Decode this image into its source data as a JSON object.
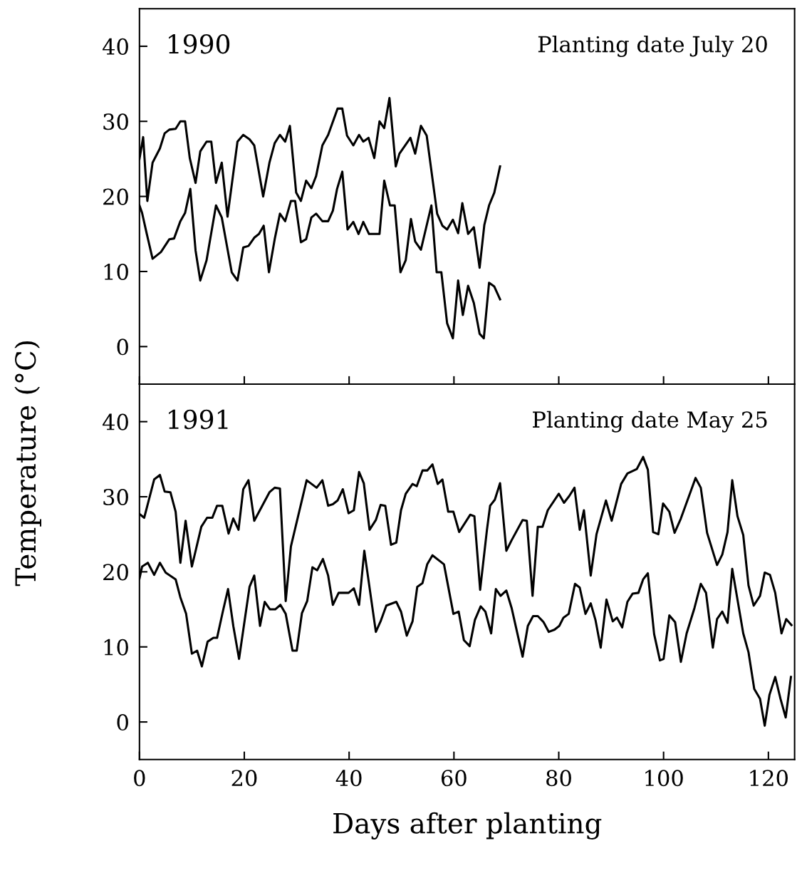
{
  "chart_data": [
    {
      "type": "line",
      "ylabel": "Temperature (°C)",
      "annotations": [
        "1990",
        "Planting date July 20"
      ],
      "xlim": [
        0,
        125
      ],
      "xticks": [
        0,
        20,
        40,
        60,
        80,
        100,
        120
      ],
      "ylim": [
        -5,
        45
      ],
      "yticks": [
        0,
        10,
        20,
        30,
        40
      ],
      "tick_labels": "y",
      "grid": false,
      "legend": false,
      "marker": "none",
      "line_style": "solid",
      "series": [
        {
          "color": "#000000",
          "x": [
            0,
            0.7,
            1.5,
            2.5,
            3.9,
            4.8,
            5.7,
            6.9,
            7.8,
            8.7,
            9.6,
            10.7,
            11.6,
            12.8,
            13.7,
            14.6,
            15.7,
            16.8,
            18.7,
            19.8,
            21.0,
            21.9,
            23.6,
            24.8,
            25.8,
            26.8,
            27.8,
            28.7,
            29.9,
            30.8,
            31.8,
            32.8,
            33.7,
            34.9,
            36.0,
            37.8,
            38.7,
            39.6,
            40.8,
            41.9,
            42.7,
            43.7,
            44.8,
            45.8,
            46.7,
            47.7,
            48.9,
            49.6,
            51.7,
            52.6,
            53.7,
            54.8,
            56.8,
            57.8,
            58.7,
            59.8,
            60.8,
            61.6,
            62.7,
            63.8,
            64.9,
            65.8,
            66.7,
            67.7,
            68.8
          ],
          "values": [
            25,
            27.9,
            19.4,
            24.5,
            26.4,
            28.4,
            28.9,
            29.0,
            30.0,
            30.0,
            25.1,
            21.8,
            26.0,
            27.3,
            27.3,
            21.8,
            24.5,
            17.3,
            27.3,
            28.2,
            27.6,
            26.8,
            20.0,
            24.5,
            27.1,
            28.2,
            27.3,
            29.4,
            20.5,
            19.4,
            22.1,
            21.1,
            22.7,
            26.8,
            28.2,
            31.7,
            31.7,
            28.1,
            26.8,
            28.2,
            27.3,
            27.8,
            25.1,
            30.0,
            29.1,
            33.1,
            24.0,
            25.7,
            27.8,
            25.7,
            29.4,
            28.1,
            17.7,
            16.1,
            15.6,
            16.9,
            15.1,
            19.1,
            15.0,
            15.9,
            10.5,
            16.2,
            18.8,
            20.5,
            24.0
          ]
        },
        {
          "color": "#000000",
          "x": [
            0,
            0.5,
            1.4,
            2.5,
            4.1,
            5.7,
            6.6,
            7.8,
            8.7,
            9.7,
            10.7,
            11.6,
            12.8,
            14.6,
            15.7,
            17.6,
            18.7,
            19.8,
            20.8,
            21.9,
            22.8,
            23.7,
            24.7,
            25.8,
            26.8,
            27.8,
            28.9,
            29.7,
            30.8,
            31.8,
            32.8,
            33.7,
            34.9,
            36.0,
            36.9,
            37.7,
            38.7,
            39.7,
            40.8,
            41.8,
            42.7,
            43.8,
            45.8,
            46.7,
            47.8,
            48.7,
            49.8,
            50.8,
            51.8,
            52.6,
            53.7,
            55.7,
            56.7,
            57.6,
            58.7,
            59.8,
            60.8,
            61.7,
            62.7,
            63.8,
            64.9,
            65.7,
            66.7,
            67.7,
            68.8
          ],
          "values": [
            18.8,
            17.8,
            15.0,
            11.7,
            12.6,
            14.3,
            14.4,
            16.7,
            17.8,
            21.0,
            12.8,
            8.8,
            11.5,
            18.8,
            17.2,
            9.9,
            8.8,
            13.2,
            13.4,
            14.5,
            15.0,
            16.1,
            9.9,
            14.3,
            17.7,
            16.7,
            19.4,
            19.4,
            13.9,
            14.3,
            17.2,
            17.7,
            16.7,
            16.7,
            18.1,
            21.0,
            23.3,
            15.6,
            16.6,
            15.0,
            16.6,
            15.0,
            15.0,
            22.1,
            18.8,
            18.8,
            9.9,
            11.5,
            17.0,
            14.0,
            12.9,
            18.8,
            9.9,
            9.9,
            3.1,
            1.1,
            8.8,
            4.2,
            8.1,
            5.8,
            1.7,
            1.1,
            8.5,
            8.0,
            6.3
          ]
        }
      ]
    },
    {
      "type": "line",
      "xlabel": "Days after planting",
      "annotations": [
        "1991",
        "Planting date May 25"
      ],
      "xlim": [
        0,
        125
      ],
      "xticks": [
        0,
        20,
        40,
        60,
        80,
        100,
        120
      ],
      "ylim": [
        -5,
        45
      ],
      "yticks": [
        0,
        10,
        20,
        30,
        40
      ],
      "grid": false,
      "legend": false,
      "marker": "none",
      "line_style": "solid",
      "series": [
        {
          "color": "#000000",
          "x": [
            0,
            0.9,
            2.8,
            3.9,
            4.8,
            5.9,
            6.9,
            7.8,
            8.8,
            10.0,
            11.8,
            12.9,
            13.9,
            14.8,
            15.8,
            17.0,
            17.9,
            18.9,
            19.8,
            20.8,
            21.9,
            24.8,
            25.8,
            26.8,
            27.9,
            28.9,
            31.9,
            33.8,
            34.9,
            36.0,
            36.9,
            37.8,
            38.8,
            39.9,
            40.9,
            41.9,
            42.8,
            43.9,
            45.1,
            46.0,
            46.9,
            48.0,
            49.0,
            49.9,
            50.8,
            52.1,
            52.9,
            54.0,
            54.9,
            55.9,
            56.9,
            57.8,
            58.9,
            59.9,
            61.0,
            63.1,
            63.9,
            65.0,
            66.3,
            66.9,
            67.8,
            68.8,
            70.0,
            71.0,
            73.1,
            73.9,
            75.0,
            76.0,
            76.9,
            77.9,
            80.0,
            81.0,
            82.0,
            83.0,
            84.0,
            84.8,
            86.1,
            87.2,
            89.0,
            90.1,
            91.9,
            93.1,
            94.9,
            96.1,
            97.0,
            98.0,
            99.0,
            99.9,
            101.1,
            102.1,
            103.3,
            106.1,
            107.1,
            108.3,
            110.2,
            111.2,
            112.2,
            113.1,
            114.1,
            115.2,
            116.2,
            117.2,
            118.4,
            119.3,
            120.3,
            121.3,
            122.5,
            123.4,
            124.4
          ],
          "values": [
            27.7,
            27.2,
            32.3,
            32.9,
            30.7,
            30.6,
            28.0,
            21.2,
            26.8,
            20.7,
            26.0,
            27.2,
            27.2,
            28.8,
            28.8,
            25.1,
            27.1,
            25.6,
            31.0,
            32.2,
            26.8,
            30.6,
            31.2,
            31.1,
            16.1,
            23.4,
            32.2,
            31.2,
            32.2,
            28.8,
            29.0,
            29.5,
            31.0,
            27.8,
            28.2,
            33.3,
            31.8,
            25.6,
            26.9,
            28.9,
            28.8,
            23.6,
            23.9,
            28.2,
            30.4,
            31.7,
            31.4,
            33.5,
            33.5,
            34.3,
            31.7,
            32.3,
            28.0,
            28.0,
            25.3,
            27.6,
            27.4,
            17.6,
            25.6,
            28.8,
            29.6,
            31.8,
            22.8,
            24.2,
            26.9,
            26.8,
            16.8,
            26.0,
            26.0,
            28.2,
            30.4,
            29.2,
            30.1,
            31.2,
            25.6,
            28.2,
            19.5,
            25.0,
            29.5,
            26.8,
            31.7,
            33.1,
            33.7,
            35.3,
            33.6,
            25.3,
            25.0,
            29.1,
            28.0,
            25.2,
            27.1,
            32.5,
            31.2,
            25.2,
            20.9,
            22.3,
            25.3,
            32.2,
            27.4,
            24.9,
            18.2,
            15.5,
            16.8,
            19.9,
            19.6,
            17.2,
            11.8,
            13.7,
            12.9
          ]
        },
        {
          "color": "#000000",
          "x": [
            0,
            0.5,
            1.6,
            2.8,
            3.9,
            5.0,
            6.9,
            7.8,
            8.9,
            10.0,
            11.0,
            11.9,
            13.0,
            14.1,
            14.8,
            15.9,
            16.9,
            17.9,
            19.0,
            21.0,
            21.9,
            23.0,
            23.9,
            24.9,
            25.9,
            26.9,
            27.9,
            29.2,
            30.0,
            31.0,
            32.0,
            33.0,
            33.9,
            35.0,
            36.0,
            36.9,
            38.0,
            39.9,
            40.9,
            41.9,
            42.9,
            45.1,
            46.0,
            47.1,
            49.0,
            49.9,
            51.0,
            52.1,
            53.0,
            54.0,
            54.9,
            55.9,
            58.1,
            59.9,
            60.9,
            61.9,
            63.0,
            64.0,
            65.1,
            66.0,
            67.1,
            68.0,
            68.9,
            70.0,
            71.0,
            73.1,
            74.1,
            75.1,
            76.0,
            77.1,
            78.1,
            79.2,
            80.1,
            80.9,
            81.9,
            83.1,
            84.0,
            85.1,
            86.1,
            87.0,
            88.0,
            89.1,
            90.3,
            91.1,
            92.1,
            93.1,
            94.1,
            95.2,
            96.1,
            97.0,
            98.2,
            99.3,
            100.0,
            101.1,
            102.2,
            103.3,
            104.4,
            105.9,
            107.1,
            108.1,
            109.4,
            110.2,
            111.2,
            112.2,
            113.1,
            115.2,
            116.2,
            117.3,
            118.4,
            119.3,
            120.2,
            121.3,
            122.3,
            123.3,
            124.3
          ],
          "values": [
            19.1,
            20.7,
            21.2,
            19.6,
            21.2,
            19.9,
            19.0,
            16.6,
            14.4,
            9.1,
            9.5,
            7.4,
            10.7,
            11.2,
            11.2,
            14.7,
            17.7,
            12.8,
            8.4,
            18.0,
            19.5,
            12.8,
            16.0,
            15.0,
            15.0,
            15.6,
            14.4,
            9.5,
            9.5,
            14.5,
            16.1,
            20.6,
            20.2,
            21.7,
            19.5,
            15.6,
            17.2,
            17.2,
            17.8,
            15.6,
            22.8,
            12.0,
            13.4,
            15.5,
            16.0,
            14.7,
            11.5,
            13.4,
            18.0,
            18.5,
            21.0,
            22.2,
            21.0,
            14.4,
            14.7,
            10.9,
            10.1,
            13.6,
            15.4,
            14.7,
            11.8,
            17.7,
            16.8,
            17.5,
            15.2,
            8.7,
            12.8,
            14.1,
            14.1,
            13.3,
            12.0,
            12.3,
            12.8,
            13.9,
            14.4,
            18.4,
            17.9,
            14.4,
            15.8,
            13.6,
            9.9,
            16.3,
            13.4,
            13.9,
            12.6,
            16.0,
            17.1,
            17.2,
            19.0,
            19.8,
            11.7,
            8.2,
            8.4,
            14.2,
            13.3,
            8.0,
            11.8,
            15.2,
            18.4,
            17.2,
            9.9,
            13.7,
            14.7,
            13.2,
            20.4,
            11.8,
            9.3,
            4.4,
            3.1,
            -0.5,
            3.6,
            6.0,
            3.1,
            0.6,
            6.0
          ]
        }
      ]
    }
  ]
}
